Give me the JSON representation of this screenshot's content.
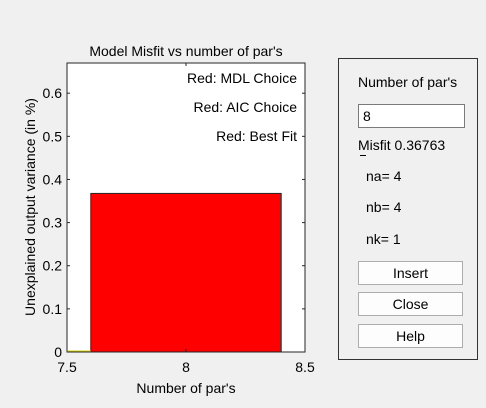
{
  "chart_data": {
    "type": "bar",
    "title": "Model Misfit vs number of par's",
    "xlabel": "Number of par's",
    "ylabel": "Unexplained output variance (in %)",
    "xlim": [
      7.5,
      8.5
    ],
    "ylim": [
      0,
      0.67
    ],
    "xticks": [
      "7.5",
      "8",
      "8.5"
    ],
    "yticks": [
      "0",
      "0.1",
      "0.2",
      "0.3",
      "0.4",
      "0.5",
      "0.6"
    ],
    "bars": [
      {
        "x": 8,
        "value": 0.36763,
        "width": 0.8
      }
    ],
    "legend_texts": [
      "Red: MDL Choice",
      "Red: AIC Choice",
      "Red: Best Fit"
    ],
    "grid": false,
    "colors": {
      "bar": "#ff0000",
      "baseline_line": "#d4d400"
    }
  },
  "panel": {
    "title": "Number of par's",
    "input_value": "8",
    "misfit_text": "Misfit 0.36763",
    "na_text": "na= 4",
    "nb_text": "nb= 4",
    "nk_text": "nk= 1",
    "buttons": {
      "insert": "Insert",
      "close": "Close",
      "help": "Help"
    }
  }
}
